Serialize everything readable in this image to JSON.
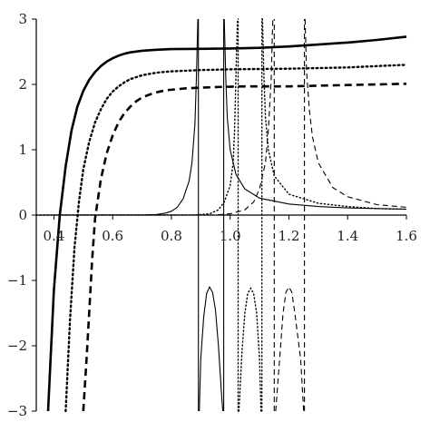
{
  "chart_data": {
    "type": "line",
    "xlim": [
      0.34,
      1.6
    ],
    "ylim": [
      -3,
      3
    ],
    "grid": false,
    "legend": "none",
    "x_ticks": [
      {
        "value": 0.4,
        "label": "0.4"
      },
      {
        "value": 0.6,
        "label": "0.6"
      },
      {
        "value": 0.8,
        "label": "0.8"
      },
      {
        "value": 1.0,
        "label": "1.0"
      },
      {
        "value": 1.2,
        "label": "1.2"
      },
      {
        "value": 1.4,
        "label": "1.4"
      },
      {
        "value": 1.6,
        "label": "1.6"
      }
    ],
    "y_ticks": [
      {
        "value": 3,
        "label": "3"
      },
      {
        "value": 2,
        "label": "2"
      },
      {
        "value": 1,
        "label": "1"
      },
      {
        "value": 0,
        "label": "0"
      },
      {
        "value": -1,
        "label": "−1"
      },
      {
        "value": -2,
        "label": "−2"
      },
      {
        "value": -3,
        "label": "−3"
      }
    ],
    "series": [
      {
        "style": "solid",
        "weight": "thick",
        "points": [
          [
            0.38,
            -3.0
          ],
          [
            0.4,
            -1.15
          ],
          [
            0.42,
            0.0
          ],
          [
            0.44,
            0.75
          ],
          [
            0.46,
            1.3
          ],
          [
            0.48,
            1.66
          ],
          [
            0.5,
            1.9
          ],
          [
            0.52,
            2.07
          ],
          [
            0.54,
            2.19
          ],
          [
            0.56,
            2.28
          ],
          [
            0.58,
            2.35
          ],
          [
            0.6,
            2.4
          ],
          [
            0.62,
            2.44
          ],
          [
            0.64,
            2.47
          ],
          [
            0.66,
            2.49
          ],
          [
            0.7,
            2.515
          ],
          [
            0.75,
            2.53
          ],
          [
            0.8,
            2.54
          ],
          [
            0.9,
            2.545
          ],
          [
            1.0,
            2.55
          ],
          [
            1.1,
            2.56
          ],
          [
            1.2,
            2.58
          ],
          [
            1.3,
            2.61
          ],
          [
            1.4,
            2.64
          ],
          [
            1.5,
            2.68
          ],
          [
            1.6,
            2.73
          ]
        ]
      },
      {
        "style": "dotted",
        "weight": "thick",
        "points": [
          [
            0.44,
            -3.0
          ],
          [
            0.455,
            -1.6
          ],
          [
            0.47,
            -0.5
          ],
          [
            0.485,
            0.2
          ],
          [
            0.5,
            0.7
          ],
          [
            0.52,
            1.12
          ],
          [
            0.54,
            1.42
          ],
          [
            0.56,
            1.62
          ],
          [
            0.58,
            1.78
          ],
          [
            0.6,
            1.89
          ],
          [
            0.62,
            1.97
          ],
          [
            0.64,
            2.03
          ],
          [
            0.66,
            2.08
          ],
          [
            0.7,
            2.14
          ],
          [
            0.75,
            2.18
          ],
          [
            0.8,
            2.2
          ],
          [
            0.9,
            2.22
          ],
          [
            1.0,
            2.23
          ],
          [
            1.2,
            2.24
          ],
          [
            1.3,
            2.25
          ],
          [
            1.4,
            2.26
          ],
          [
            1.5,
            2.28
          ],
          [
            1.6,
            2.3
          ]
        ]
      },
      {
        "style": "dashed",
        "weight": "thick",
        "points": [
          [
            0.5,
            -3.0
          ],
          [
            0.51,
            -2.3
          ],
          [
            0.52,
            -1.5
          ],
          [
            0.53,
            -0.7
          ],
          [
            0.54,
            -0.05
          ],
          [
            0.56,
            0.55
          ],
          [
            0.58,
            0.95
          ],
          [
            0.6,
            1.22
          ],
          [
            0.62,
            1.42
          ],
          [
            0.64,
            1.56
          ],
          [
            0.66,
            1.66
          ],
          [
            0.68,
            1.74
          ],
          [
            0.7,
            1.8
          ],
          [
            0.74,
            1.87
          ],
          [
            0.78,
            1.91
          ],
          [
            0.85,
            1.94
          ],
          [
            0.95,
            1.96
          ],
          [
            1.05,
            1.97
          ],
          [
            1.2,
            1.97
          ],
          [
            1.3,
            1.98
          ],
          [
            1.4,
            1.99
          ],
          [
            1.5,
            2.0
          ],
          [
            1.6,
            2.01
          ]
        ]
      },
      {
        "style": "solid",
        "weight": "thin",
        "points": [
          [
            0.34,
            0
          ],
          [
            0.7,
            0.002
          ],
          [
            0.75,
            0.01
          ],
          [
            0.78,
            0.03
          ],
          [
            0.8,
            0.06
          ],
          [
            0.82,
            0.12
          ],
          [
            0.84,
            0.25
          ],
          [
            0.86,
            0.52
          ],
          [
            0.87,
            0.8
          ],
          [
            0.88,
            1.4
          ],
          [
            0.885,
            2.1
          ],
          [
            0.89,
            3.0
          ]
        ]
      },
      {
        "style": "solid",
        "weight": "thin",
        "points": [
          [
            0.895,
            -3.0
          ],
          [
            0.9,
            -2.2
          ],
          [
            0.91,
            -1.55
          ],
          [
            0.92,
            -1.2
          ],
          [
            0.93,
            -1.1
          ],
          [
            0.94,
            -1.18
          ],
          [
            0.95,
            -1.45
          ],
          [
            0.96,
            -2.0
          ],
          [
            0.97,
            -2.7
          ],
          [
            0.975,
            -3.0
          ]
        ]
      },
      {
        "style": "solid",
        "weight": "thin",
        "points": [
          [
            0.98,
            3.0
          ],
          [
            0.985,
            2.1
          ],
          [
            0.99,
            1.5
          ],
          [
            1.0,
            1.0
          ],
          [
            1.02,
            0.62
          ],
          [
            1.05,
            0.4
          ],
          [
            1.1,
            0.26
          ],
          [
            1.2,
            0.17
          ],
          [
            1.3,
            0.13
          ],
          [
            1.4,
            0.11
          ],
          [
            1.5,
            0.1
          ],
          [
            1.6,
            0.09
          ]
        ]
      },
      {
        "style": "dotted",
        "weight": "thin",
        "points": [
          [
            0.34,
            0
          ],
          [
            0.88,
            0.002
          ],
          [
            0.93,
            0.02
          ],
          [
            0.96,
            0.08
          ],
          [
            0.98,
            0.2
          ],
          [
            1.0,
            0.45
          ],
          [
            1.01,
            0.8
          ],
          [
            1.015,
            1.3
          ],
          [
            1.02,
            2.2
          ],
          [
            1.025,
            3.0
          ]
        ]
      },
      {
        "style": "dotted",
        "weight": "thin",
        "points": [
          [
            1.03,
            -3.0
          ],
          [
            1.04,
            -2.1
          ],
          [
            1.05,
            -1.5
          ],
          [
            1.06,
            -1.2
          ],
          [
            1.07,
            -1.12
          ],
          [
            1.08,
            -1.2
          ],
          [
            1.09,
            -1.5
          ],
          [
            1.1,
            -2.2
          ],
          [
            1.105,
            -3.0
          ]
        ]
      },
      {
        "style": "dotted",
        "weight": "thin",
        "points": [
          [
            1.11,
            3.0
          ],
          [
            1.115,
            2.1
          ],
          [
            1.12,
            1.5
          ],
          [
            1.13,
            1.0
          ],
          [
            1.15,
            0.6
          ],
          [
            1.2,
            0.32
          ],
          [
            1.3,
            0.18
          ],
          [
            1.4,
            0.13
          ],
          [
            1.5,
            0.1
          ],
          [
            1.6,
            0.09
          ]
        ]
      },
      {
        "style": "dashed",
        "weight": "thin",
        "points": [
          [
            0.34,
            0
          ],
          [
            0.95,
            0.002
          ],
          [
            1.0,
            0.02
          ],
          [
            1.05,
            0.08
          ],
          [
            1.08,
            0.2
          ],
          [
            1.1,
            0.4
          ],
          [
            1.12,
            0.8
          ],
          [
            1.13,
            1.3
          ],
          [
            1.14,
            2.1
          ],
          [
            1.145,
            3.0
          ]
        ]
      },
      {
        "style": "dashed",
        "weight": "thin",
        "points": [
          [
            1.155,
            -3.0
          ],
          [
            1.17,
            -2.1
          ],
          [
            1.18,
            -1.5
          ],
          [
            1.19,
            -1.18
          ],
          [
            1.2,
            -1.1
          ],
          [
            1.21,
            -1.18
          ],
          [
            1.22,
            -1.5
          ],
          [
            1.24,
            -2.2
          ],
          [
            1.25,
            -3.0
          ]
        ]
      },
      {
        "style": "dashed",
        "weight": "thin",
        "points": [
          [
            1.255,
            3.0
          ],
          [
            1.26,
            2.2
          ],
          [
            1.27,
            1.6
          ],
          [
            1.28,
            1.2
          ],
          [
            1.3,
            0.8
          ],
          [
            1.35,
            0.42
          ],
          [
            1.4,
            0.28
          ],
          [
            1.5,
            0.16
          ],
          [
            1.6,
            0.12
          ]
        ]
      },
      {
        "style": "solid",
        "weight": "thin",
        "points": [
          [
            0.892,
            -3.0
          ],
          [
            0.892,
            3.0
          ]
        ]
      },
      {
        "style": "solid",
        "weight": "thin",
        "points": [
          [
            0.978,
            -3.0
          ],
          [
            0.978,
            3.0
          ]
        ]
      },
      {
        "style": "dotted",
        "weight": "thin",
        "points": [
          [
            1.027,
            -3.0
          ],
          [
            1.027,
            3.0
          ]
        ]
      },
      {
        "style": "dotted",
        "weight": "thin",
        "points": [
          [
            1.108,
            -3.0
          ],
          [
            1.108,
            3.0
          ]
        ]
      },
      {
        "style": "dashed",
        "weight": "thin",
        "points": [
          [
            1.15,
            -3.0
          ],
          [
            1.15,
            3.0
          ]
        ]
      },
      {
        "style": "dashed",
        "weight": "thin",
        "points": [
          [
            1.253,
            -3.0
          ],
          [
            1.253,
            3.0
          ]
        ]
      }
    ]
  }
}
